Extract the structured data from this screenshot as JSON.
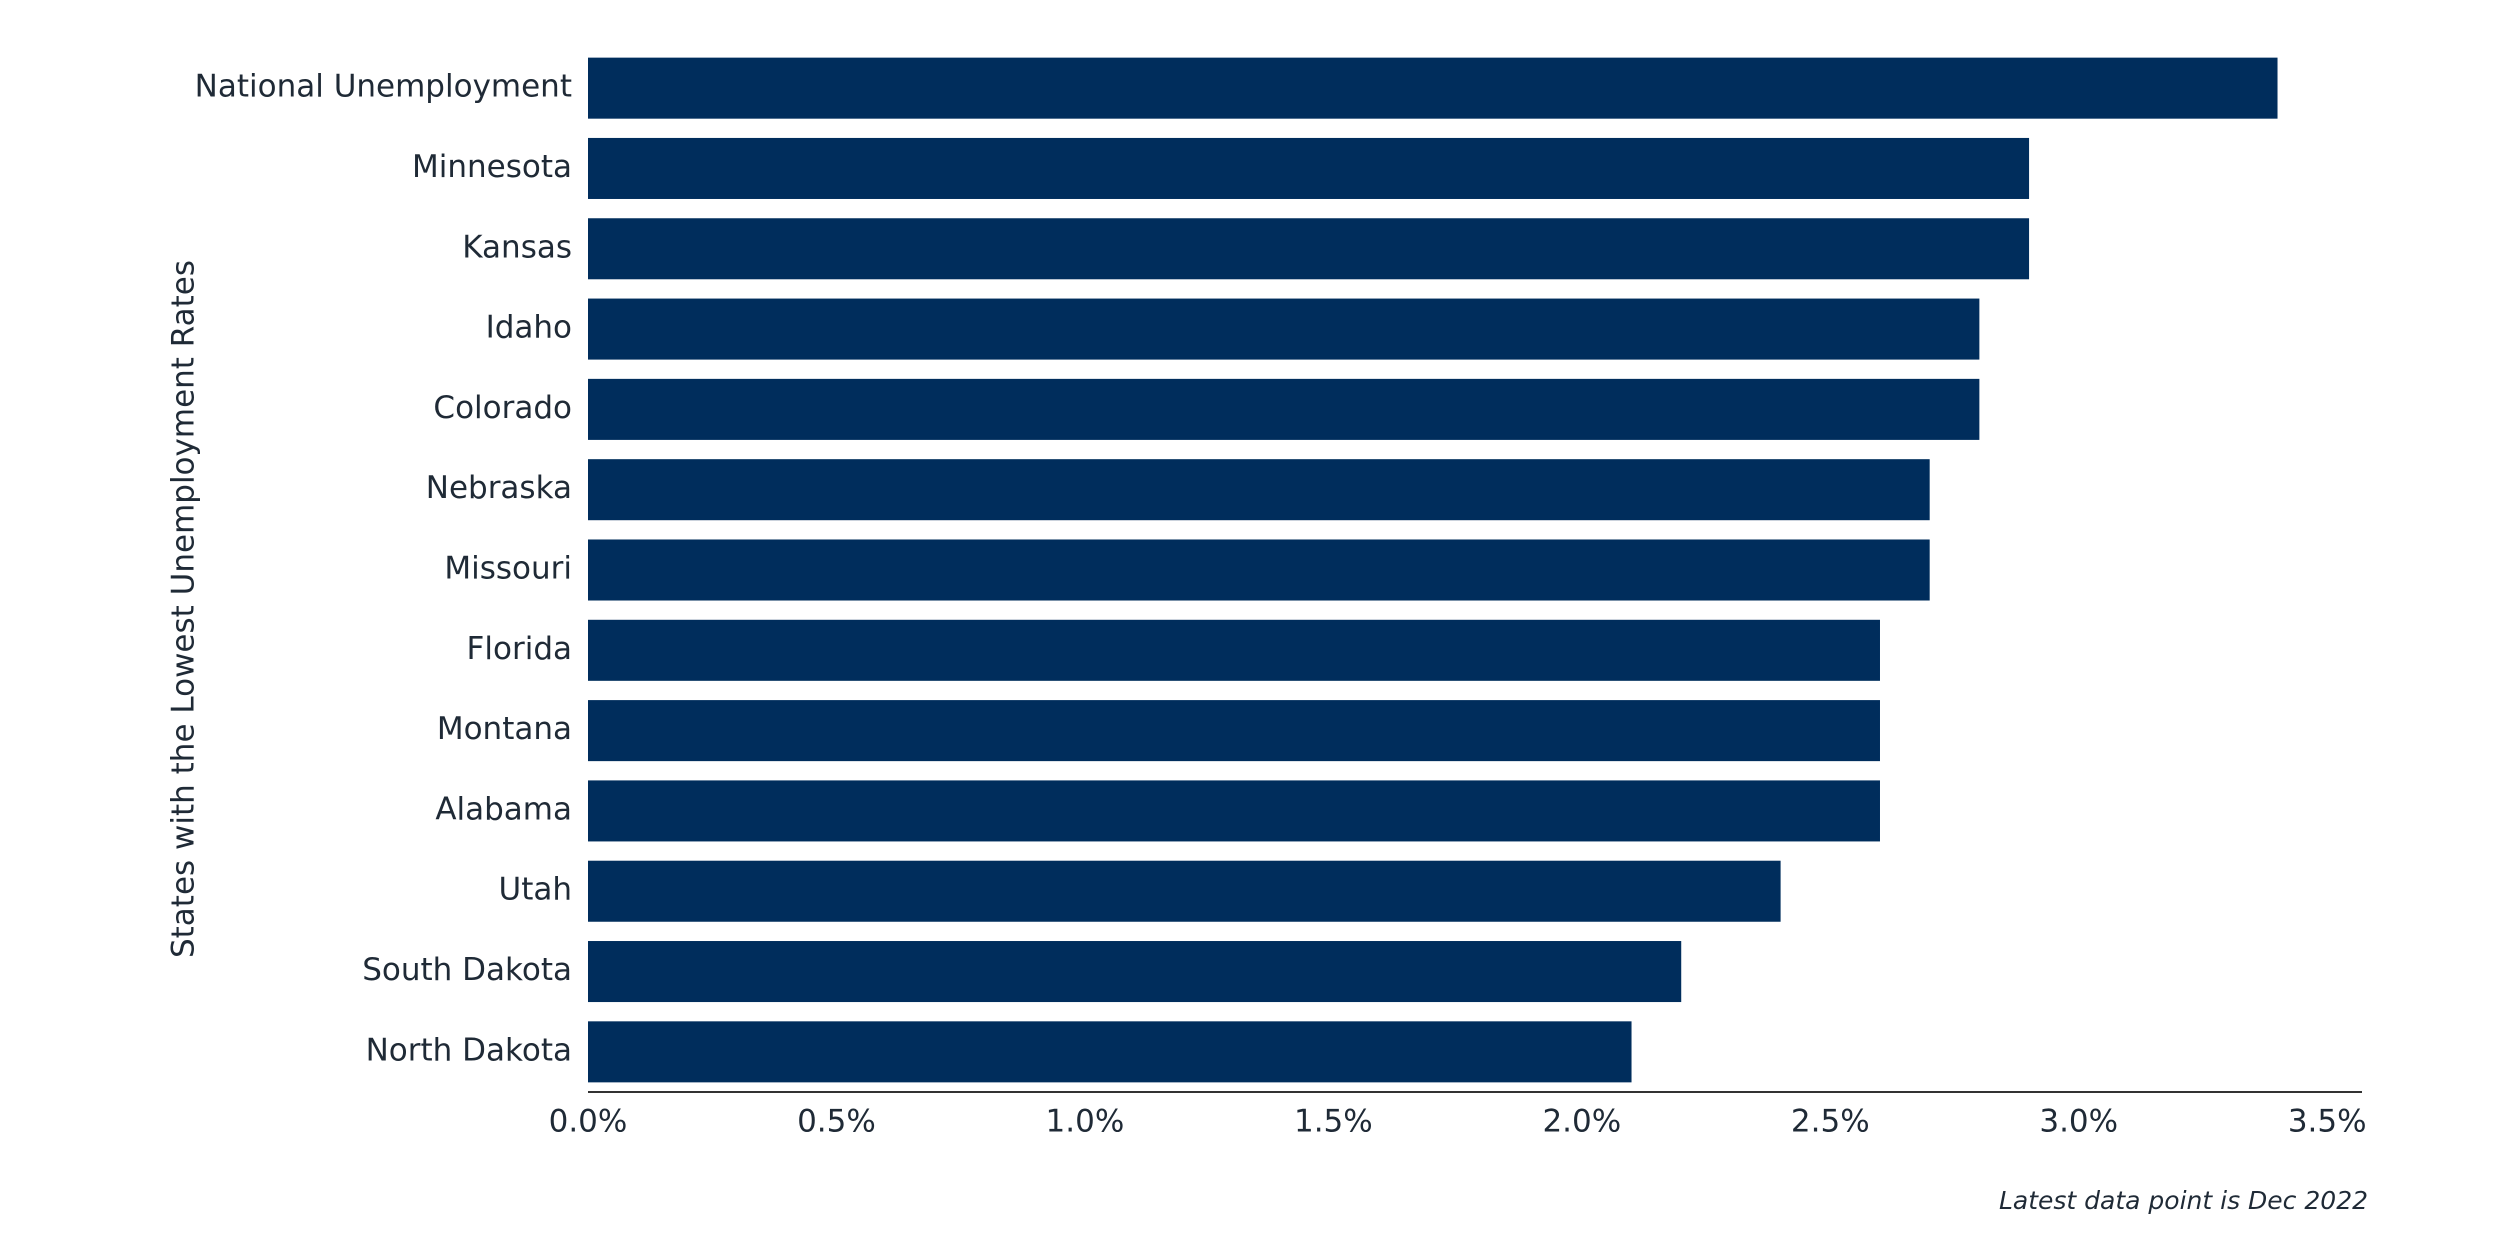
{
  "chart_data": {
    "type": "barh",
    "y_label": "States with the Lowest Unemployment Rates",
    "note": "Latest data point is Dec 2022",
    "categories": [
      "National Unemployment",
      "Minnesota",
      "Kansas",
      "Idaho",
      "Colorado",
      "Nebraska",
      "Missouri",
      "Florida",
      "Montana",
      "Alabama",
      "Utah",
      "South Dakota",
      "North Dakota"
    ],
    "values": [
      3.4,
      2.9,
      2.9,
      2.8,
      2.8,
      2.7,
      2.7,
      2.6,
      2.6,
      2.6,
      2.4,
      2.2,
      2.1
    ],
    "color": "#002d5c",
    "xlim": [
      0,
      3.57
    ],
    "xticks": [
      {
        "value": 0,
        "label": "0.0%"
      },
      {
        "value": 0.5,
        "label": "0.5%"
      },
      {
        "value": 1,
        "label": "1.0%"
      },
      {
        "value": 1.5,
        "label": "1.5%"
      },
      {
        "value": 2,
        "label": "2.0%"
      },
      {
        "value": 2.5,
        "label": "2.5%"
      },
      {
        "value": 3,
        "label": "3.0%"
      },
      {
        "value": 3.5,
        "label": "3.5%"
      }
    ],
    "grid": false
  }
}
